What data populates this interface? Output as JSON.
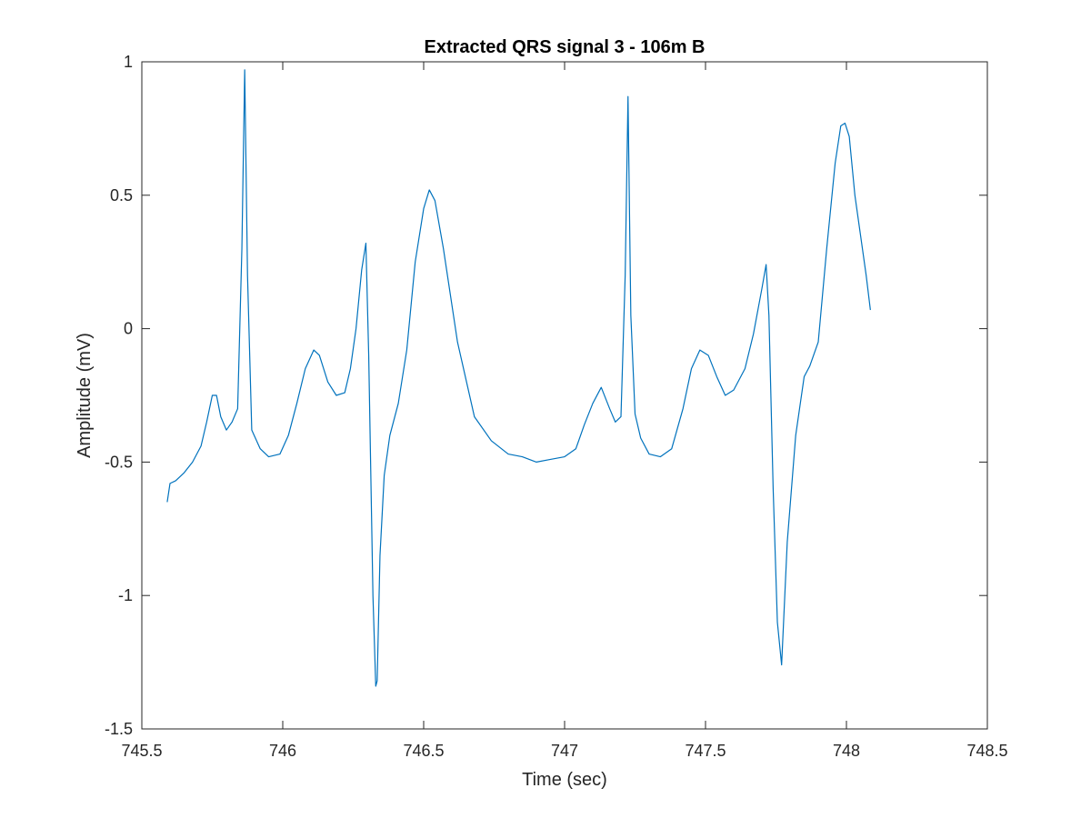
{
  "chart_data": {
    "type": "line",
    "title": "Extracted QRS signal 3 - 106m B",
    "xlabel": "Time (sec)",
    "ylabel": "Amplitude (mV)",
    "xlim": [
      745.5,
      748.5
    ],
    "ylim": [
      -1.5,
      1
    ],
    "xticks": [
      745.5,
      746,
      746.5,
      747,
      747.5,
      748,
      748.5
    ],
    "xtick_labels": [
      "745.5",
      "746",
      "746.5",
      "747",
      "747.5",
      "748",
      "748.5"
    ],
    "yticks": [
      -1.5,
      -1,
      -0.5,
      0,
      0.5,
      1
    ],
    "ytick_labels": [
      "-1.5",
      "-1",
      "-0.5",
      "0",
      "0.5",
      "1"
    ],
    "grid": false,
    "box": true,
    "line_color": "#0072BD",
    "series": [
      {
        "x": [
          745.59,
          745.6,
          745.62,
          745.65,
          745.68,
          745.71,
          745.73,
          745.75,
          745.765,
          745.78,
          745.8,
          745.82,
          745.84,
          745.855,
          745.865,
          745.875,
          745.89,
          745.92,
          745.95,
          745.99,
          746.02,
          746.05,
          746.08,
          746.11,
          746.13,
          746.16,
          746.19,
          746.22,
          746.24,
          746.26,
          746.28,
          746.295,
          746.305,
          746.32,
          746.33,
          746.335,
          746.345,
          746.36,
          746.38,
          746.41,
          746.44,
          746.47,
          746.5,
          746.52,
          746.54,
          746.57,
          746.62,
          746.68,
          746.74,
          746.8,
          746.85,
          746.9,
          746.95,
          747.0,
          747.04,
          747.07,
          747.1,
          747.13,
          747.16,
          747.18,
          747.2,
          747.215,
          747.225,
          747.235,
          747.25,
          747.27,
          747.3,
          747.34,
          747.38,
          747.42,
          747.45,
          747.48,
          747.51,
          747.54,
          747.57,
          747.6,
          747.64,
          747.67,
          747.7,
          747.715,
          747.725,
          747.74,
          747.755,
          747.77,
          747.79,
          747.82,
          747.85,
          747.87,
          747.9,
          747.93,
          747.96,
          747.98,
          747.995,
          748.01,
          748.03,
          748.05,
          748.07,
          748.085
        ],
        "y": [
          -0.65,
          -0.58,
          -0.57,
          -0.54,
          -0.5,
          -0.44,
          -0.35,
          -0.25,
          -0.25,
          -0.33,
          -0.38,
          -0.35,
          -0.3,
          0.3,
          0.97,
          0.2,
          -0.38,
          -0.45,
          -0.48,
          -0.47,
          -0.4,
          -0.28,
          -0.15,
          -0.08,
          -0.1,
          -0.2,
          -0.25,
          -0.24,
          -0.15,
          0.0,
          0.22,
          0.32,
          -0.1,
          -1.0,
          -1.34,
          -1.32,
          -0.85,
          -0.55,
          -0.4,
          -0.28,
          -0.08,
          0.25,
          0.45,
          0.52,
          0.48,
          0.3,
          -0.05,
          -0.33,
          -0.42,
          -0.47,
          -0.48,
          -0.5,
          -0.49,
          -0.48,
          -0.45,
          -0.36,
          -0.28,
          -0.22,
          -0.3,
          -0.35,
          -0.33,
          0.2,
          0.87,
          0.05,
          -0.32,
          -0.41,
          -0.47,
          -0.48,
          -0.45,
          -0.3,
          -0.15,
          -0.08,
          -0.1,
          -0.18,
          -0.25,
          -0.23,
          -0.15,
          -0.02,
          0.15,
          0.24,
          0.05,
          -0.6,
          -1.1,
          -1.26,
          -0.8,
          -0.4,
          -0.18,
          -0.14,
          -0.05,
          0.3,
          0.62,
          0.76,
          0.77,
          0.72,
          0.5,
          0.35,
          0.2,
          0.07
        ]
      }
    ]
  }
}
